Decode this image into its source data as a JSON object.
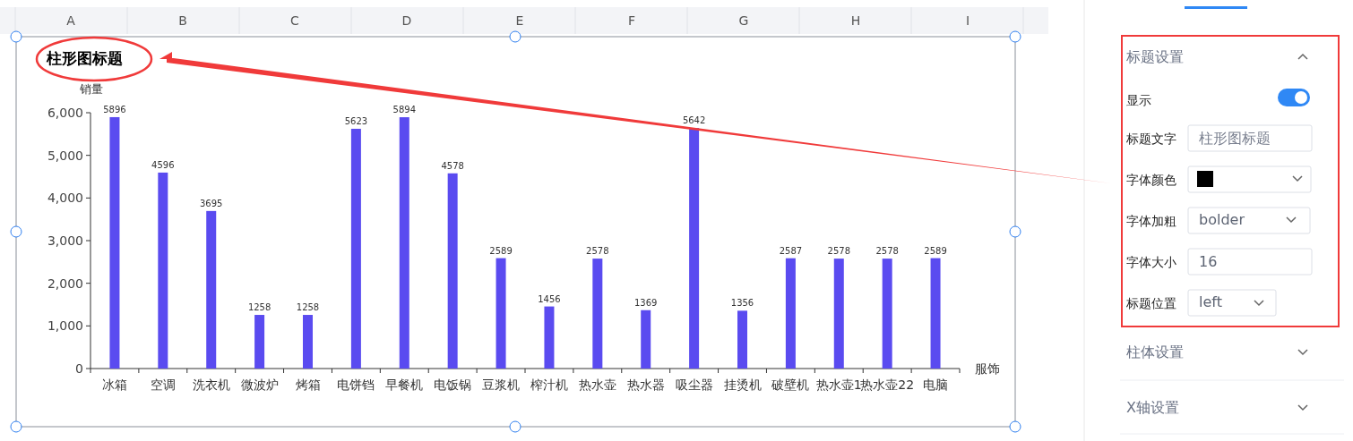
{
  "chart_data": [
    {
      "type": "bar",
      "title": "柱形图标题",
      "ylabel": "销量",
      "xlabel": "服饰",
      "categories": [
        "冰箱",
        "空调",
        "洗衣机",
        "微波炉",
        "烤箱",
        "电饼铛",
        "早餐机",
        "电饭锅",
        "豆浆机",
        "榨汁机",
        "热水壶",
        "热水器",
        "吸尘器",
        "挂烫机",
        "破壁机",
        "热水壶1",
        "热水壶22",
        "电脑"
      ],
      "values": [
        5896,
        4596,
        3695,
        1258,
        1258,
        5623,
        5894,
        4578,
        2589,
        1456,
        2578,
        1369,
        5642,
        1356,
        2587,
        2578,
        2578,
        2589
      ],
      "color": "#5a4bf0",
      "data_labels": true,
      "grid": false,
      "ylim": [
        0,
        6000
      ],
      "yticks": [
        {
          "value": 0,
          "label": "0"
        },
        {
          "value": 1000,
          "label": "1,000"
        },
        {
          "value": 2000,
          "label": "2,000"
        },
        {
          "value": 3000,
          "label": "3,000"
        },
        {
          "value": 4000,
          "label": "4,000"
        },
        {
          "value": 5000,
          "label": "5,000"
        },
        {
          "value": 6000,
          "label": "6,000"
        }
      ]
    },
    {
      "type": "other",
      "annotations": [
        "A",
        "B",
        "C",
        "D",
        "E",
        "F",
        "G",
        "H",
        "I"
      ]
    },
    {
      "type": "other",
      "annotations": [
        "标题设置",
        "显示",
        "标题文字",
        "柱形图标题",
        "字体颜色",
        "字体加粗",
        "bolder",
        "字体大小",
        "16",
        "标题位置",
        "left",
        "柱体设置",
        "X轴设置"
      ]
    }
  ]
}
